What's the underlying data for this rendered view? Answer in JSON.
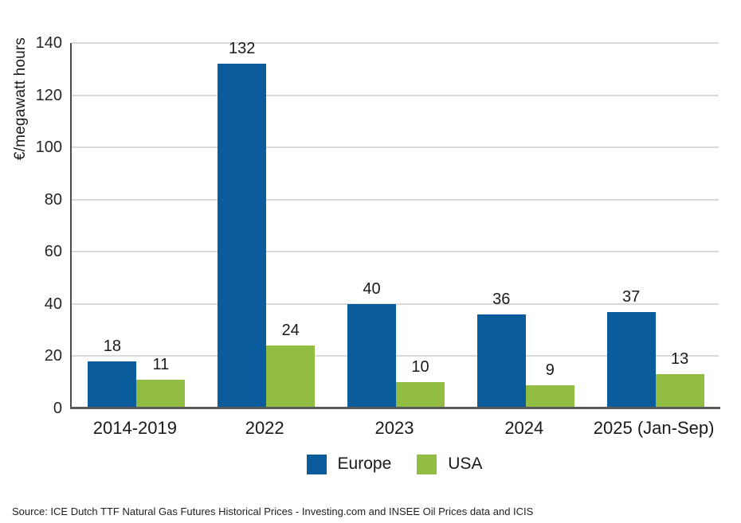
{
  "chart_data": {
    "type": "bar",
    "title": "",
    "ylabel": "€/megawatt hours",
    "xlabel": "",
    "categories": [
      "2014-2019",
      "2022",
      "2023",
      "2024",
      "2025 (Jan-Sep)"
    ],
    "series": [
      {
        "name": "Europe",
        "color": "#0a5c9c",
        "values": [
          18,
          132,
          40,
          36,
          37
        ]
      },
      {
        "name": "USA",
        "color": "#92bd43",
        "values": [
          11,
          24,
          10,
          9,
          13
        ]
      }
    ],
    "ylim": [
      0,
      140
    ],
    "yticks": [
      0,
      20,
      40,
      60,
      80,
      100,
      120,
      140
    ],
    "grid": "horizontal",
    "gridline_color": "#d9d9d9",
    "axis_color": "#58595b",
    "legend_position": "bottom",
    "data_labels": true
  },
  "source_note": "Source: ICE Dutch TTF Natural Gas Futures Historical Prices - Investing.com and INSEE Oil Prices data and ICIS"
}
